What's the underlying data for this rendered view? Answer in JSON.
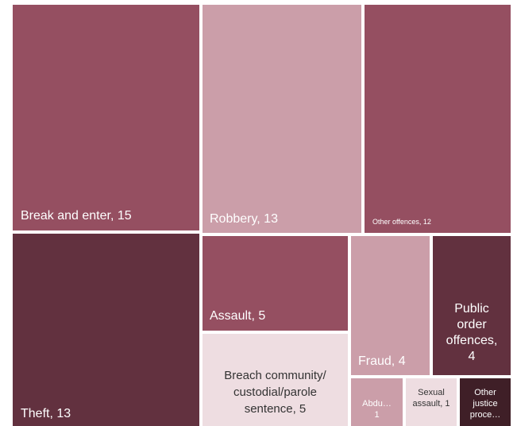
{
  "chart_data": {
    "type": "treemap",
    "title": "",
    "items": [
      {
        "label": "Break and enter, 15",
        "category": "Break and enter",
        "value": 15,
        "color": "#954F61"
      },
      {
        "label": "Theft, 13",
        "category": "Theft",
        "value": 13,
        "color": "#62313F"
      },
      {
        "label": "Robbery, 13",
        "category": "Robbery",
        "value": 13,
        "color": "#CB9EA9"
      },
      {
        "label": "Assault, 5",
        "category": "Assault",
        "value": 5,
        "color": "#954F61"
      },
      {
        "label": "Breach community/ custodial/parole sentence, 5",
        "category": "Breach community/ custodial/parole sentence",
        "value": 5,
        "color": "#EEDDE1"
      },
      {
        "label": "Other offences, 12",
        "category": "Other offences",
        "value": 12,
        "color": "#954F61"
      },
      {
        "label": "Fraud, 4",
        "category": "Fraud",
        "value": 4,
        "color": "#CB9EA9"
      },
      {
        "label": "Public order offences, 4",
        "category": "Public order offences",
        "value": 4,
        "color": "#62313F"
      },
      {
        "label": "Abdu… 1",
        "category": "Abdu…",
        "value": 1,
        "color": "#CB9EA9"
      },
      {
        "label": "Sexual assault, 1",
        "category": "Sexual assault",
        "value": 1,
        "color": "#EEDDE1"
      },
      {
        "label": "Other justice proce…",
        "category": "Other justice proce…",
        "value": 1,
        "color": "#3F1F27"
      }
    ]
  }
}
